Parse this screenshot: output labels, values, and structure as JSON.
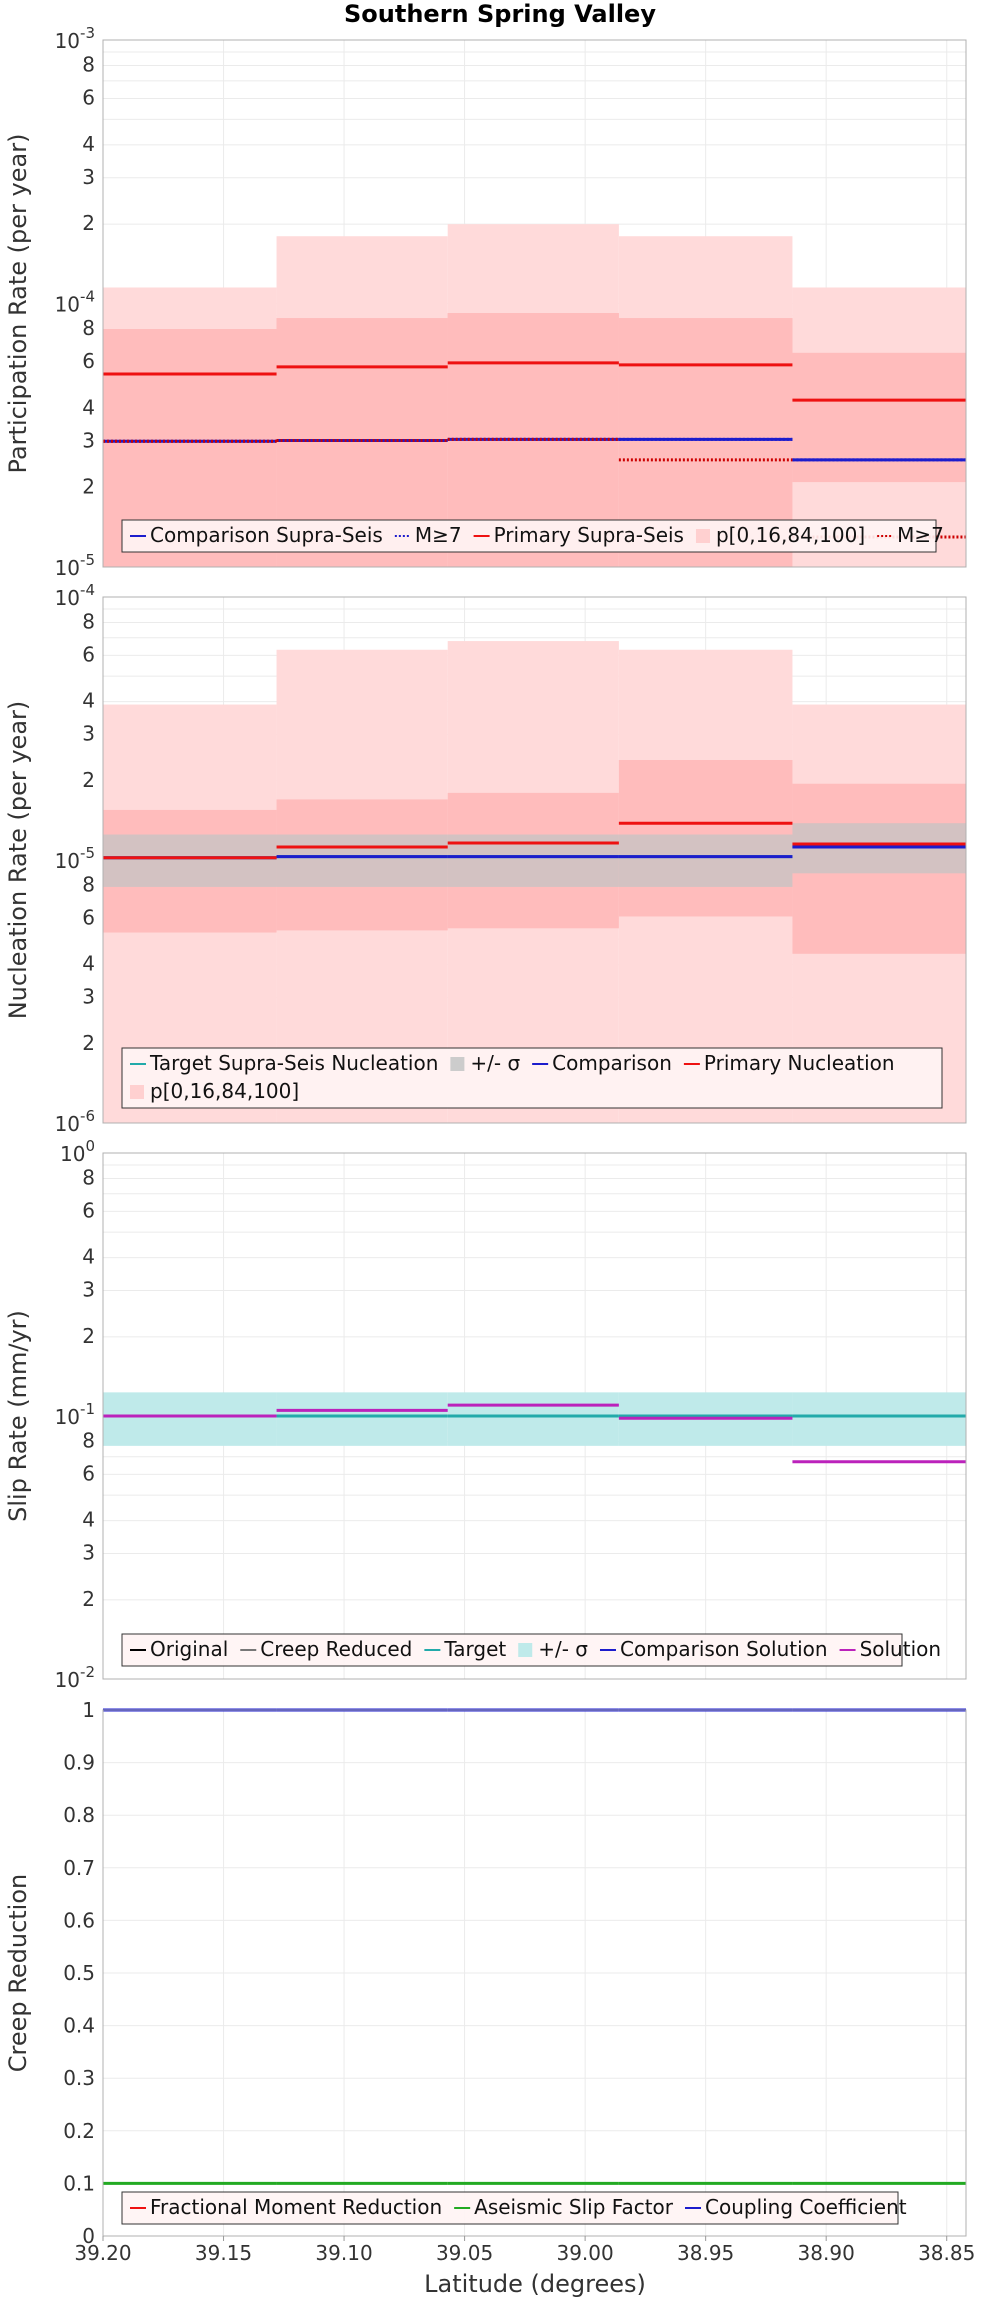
{
  "chart_data": {
    "type": "line",
    "title": "Southern Spring Valley",
    "xlabel": "Latitude (degrees)",
    "xlim": [
      39.2,
      38.842
    ],
    "x_ticks": [
      "39.20",
      "39.15",
      "39.10",
      "39.05",
      "39.00",
      "38.95",
      "38.90",
      "38.85"
    ],
    "grid": true,
    "segments": [
      39.2,
      39.128,
      39.057,
      38.986,
      38.914,
      38.842
    ],
    "panels": [
      {
        "ylabel": "Participation Rate (per year)",
        "yscale": "log",
        "ylim": [
          1e-05,
          0.001
        ],
        "decade_labels": [
          {
            "base": "10",
            "exp": "-5",
            "v": 1e-05
          },
          {
            "base": "10",
            "exp": "-4",
            "v": 0.0001
          },
          {
            "base": "10",
            "exp": "-3",
            "v": 0.001
          }
        ],
        "minor_labels": [
          {
            "t": "2",
            "v": 2e-05
          },
          {
            "t": "3",
            "v": 3e-05
          },
          {
            "t": "4",
            "v": 4e-05
          },
          {
            "t": "6",
            "v": 6e-05
          },
          {
            "t": "8",
            "v": 8e-05
          },
          {
            "t": "2",
            "v": 0.0002
          },
          {
            "t": "3",
            "v": 0.0003
          },
          {
            "t": "4",
            "v": 0.0004
          },
          {
            "t": "6",
            "v": 0.0006
          },
          {
            "t": "8",
            "v": 0.0008
          }
        ],
        "bands": [
          {
            "series": "p[0,16,84,100]",
            "color": "#ffdada",
            "lo": [
              1e-05,
              1e-05,
              1e-05,
              1e-05,
              1e-05
            ],
            "hi": [
              0.000115,
              0.00018,
              0.0002,
              0.00018,
              0.000115
            ]
          },
          {
            "series": "p[0,16,84,100]",
            "color": "#ffbcbc",
            "lo": [
              1e-05,
              1e-05,
              1e-05,
              1e-05,
              1e-05
            ],
            "hi": [
              8e-05,
              8.8e-05,
              9.2e-05,
              8.8e-05,
              1e-05
            ]
          },
          {
            "series": "p[0,16,84,100]",
            "color": "#ffbcbc",
            "lo": [
              3.3e-05,
              3.2e-05,
              3.2e-05,
              3.2e-05,
              2.1e-05
            ],
            "hi": [
              8e-05,
              8.8e-05,
              9.2e-05,
              8.8e-05,
              6.5e-05
            ]
          }
        ],
        "series": [
          {
            "name": "Comparison Supra-Seis",
            "color": "#1c1ccc",
            "style": "solid",
            "values": [
              3e-05,
              3.02e-05,
              3.05e-05,
              3.05e-05,
              2.55e-05
            ]
          },
          {
            "name": "M≥7",
            "color": "#1c1ccc",
            "style": "dotted",
            "values": [
              3e-05,
              3.02e-05,
              3.05e-05,
              3.05e-05,
              2.55e-05
            ]
          },
          {
            "name": "Primary Supra-Seis",
            "color": "#ee1111",
            "style": "solid",
            "values": [
              5.4e-05,
              5.75e-05,
              5.95e-05,
              5.85e-05,
              4.3e-05
            ]
          },
          {
            "name": "M≥7",
            "color": "#cc0000",
            "style": "dotted",
            "values": [
              3e-05,
              3.02e-05,
              3.05e-05,
              2.55e-05,
              1.3e-05
            ]
          }
        ],
        "legend": [
          {
            "label": "Comparison Supra-Seis",
            "color": "#1c1ccc",
            "style": "solid"
          },
          {
            "label": "M≥7",
            "color": "#1c1ccc",
            "style": "dotted"
          },
          {
            "label": "Primary Supra-Seis",
            "color": "#ee1111",
            "style": "solid"
          },
          {
            "label": "p[0,16,84,100]",
            "color": "#ffd0d0",
            "style": "box"
          },
          {
            "label": "M≥7",
            "color": "#cc0000",
            "style": "dotted"
          }
        ]
      },
      {
        "ylabel": "Nucleation Rate (per year)",
        "yscale": "log",
        "ylim": [
          1e-06,
          0.0001
        ],
        "decade_labels": [
          {
            "base": "10",
            "exp": "-6",
            "v": 1e-06
          },
          {
            "base": "10",
            "exp": "-5",
            "v": 1e-05
          },
          {
            "base": "10",
            "exp": "-4",
            "v": 0.0001
          }
        ],
        "minor_labels": [
          {
            "t": "2",
            "v": 2e-06
          },
          {
            "t": "3",
            "v": 3e-06
          },
          {
            "t": "4",
            "v": 4e-06
          },
          {
            "t": "6",
            "v": 6e-06
          },
          {
            "t": "8",
            "v": 8e-06
          },
          {
            "t": "2",
            "v": 2e-05
          },
          {
            "t": "3",
            "v": 3e-05
          },
          {
            "t": "4",
            "v": 4e-05
          },
          {
            "t": "6",
            "v": 6e-05
          },
          {
            "t": "8",
            "v": 8e-05
          }
        ],
        "bands": [
          {
            "series": "p[0,16,84,100]",
            "color": "#ffdada",
            "lo": [
              1e-06,
              1e-06,
              1e-06,
              1e-06,
              1e-06
            ],
            "hi": [
              3.9e-05,
              6.3e-05,
              6.8e-05,
              6.3e-05,
              3.9e-05
            ]
          },
          {
            "series": "p[0,16,84,100]",
            "color": "#ffbcbc",
            "lo": [
              5.3e-06,
              5.4e-06,
              5.5e-06,
              6.1e-06,
              4.4e-06
            ],
            "hi": [
              1.55e-05,
              1.7e-05,
              1.8e-05,
              2.4e-05,
              1.95e-05
            ]
          },
          {
            "series": "+/- σ",
            "color": "#c4c4c4",
            "opacity": 0.75,
            "lo": [
              7.9e-06,
              7.9e-06,
              7.9e-06,
              7.9e-06,
              8.9e-06
            ],
            "hi": [
              1.25e-05,
              1.25e-05,
              1.25e-05,
              1.25e-05,
              1.38e-05
            ]
          }
        ],
        "series": [
          {
            "name": "Target Supra-Seis Nucleation",
            "color": "#22aaaa",
            "style": "solid",
            "values": [
              1.02e-05,
              1.03e-05,
              1.03e-05,
              1.03e-05,
              1.12e-05
            ]
          },
          {
            "name": "Comparison",
            "color": "#1c1ccc",
            "style": "solid",
            "values": [
              1.02e-05,
              1.03e-05,
              1.03e-05,
              1.03e-05,
              1.12e-05
            ]
          },
          {
            "name": "Primary Nucleation",
            "color": "#ee1111",
            "style": "solid",
            "values": [
              1.02e-05,
              1.12e-05,
              1.16e-05,
              1.38e-05,
              1.15e-05
            ]
          }
        ],
        "legend": [
          {
            "label": "Target Supra-Seis Nucleation",
            "color": "#22aaaa",
            "style": "solid"
          },
          {
            "label": "+/- σ",
            "color": "#cccccc",
            "style": "box"
          },
          {
            "label": "Comparison",
            "color": "#1c1ccc",
            "style": "solid"
          },
          {
            "label": "Primary Nucleation",
            "color": "#ee1111",
            "style": "solid"
          },
          {
            "label": "p[0,16,84,100]",
            "color": "#ffd0d0",
            "style": "box"
          }
        ]
      },
      {
        "ylabel": "Slip Rate (mm/yr)",
        "yscale": "log",
        "ylim": [
          0.01,
          1
        ],
        "decade_labels": [
          {
            "base": "10",
            "exp": "-2",
            "v": 0.01
          },
          {
            "base": "10",
            "exp": "-1",
            "v": 0.1
          },
          {
            "base": "10",
            "exp": "0",
            "v": 1
          }
        ],
        "minor_labels": [
          {
            "t": "2",
            "v": 0.02
          },
          {
            "t": "3",
            "v": 0.03
          },
          {
            "t": "4",
            "v": 0.04
          },
          {
            "t": "6",
            "v": 0.06
          },
          {
            "t": "8",
            "v": 0.08
          },
          {
            "t": "2",
            "v": 0.2
          },
          {
            "t": "3",
            "v": 0.3
          },
          {
            "t": "4",
            "v": 0.4
          },
          {
            "t": "6",
            "v": 0.6
          },
          {
            "t": "8",
            "v": 0.8
          }
        ],
        "bands": [
          {
            "series": "+/- σ",
            "color": "#bfeaea",
            "lo": [
              0.077,
              0.077,
              0.077,
              0.077,
              0.077
            ],
            "hi": [
              0.123,
              0.123,
              0.123,
              0.123,
              0.123
            ]
          }
        ],
        "series": [
          {
            "name": "Target",
            "color": "#22aaaa",
            "style": "solid",
            "values": [
              0.1,
              0.1,
              0.1,
              0.1,
              0.1
            ]
          },
          {
            "name": "Solution",
            "color": "#bb22bb",
            "style": "solid",
            "values": [
              0.1,
              0.105,
              0.11,
              0.098,
              0.067
            ]
          }
        ],
        "legend": [
          {
            "label": "Original",
            "color": "#000000",
            "style": "solid"
          },
          {
            "label": "Creep Reduced",
            "color": "#777777",
            "style": "solid"
          },
          {
            "label": "Target",
            "color": "#22aaaa",
            "style": "solid"
          },
          {
            "label": "+/- σ",
            "color": "#bfeaea",
            "style": "box"
          },
          {
            "label": "Comparison Solution",
            "color": "#1c1ccc",
            "style": "solid"
          },
          {
            "label": "Solution",
            "color": "#bb22bb",
            "style": "solid"
          }
        ]
      },
      {
        "ylabel": "Creep Reduction",
        "yscale": "linear",
        "ylim": [
          0,
          1
        ],
        "y_ticks": [
          "0",
          "0.1",
          "0.2",
          "0.3",
          "0.4",
          "0.5",
          "0.6",
          "0.7",
          "0.8",
          "0.9",
          "1"
        ],
        "bands": [],
        "series": [
          {
            "name": "Coupling Coefficient",
            "color": "#1c1ccc",
            "style": "solid",
            "values": [
              1,
              1,
              1,
              1,
              1
            ]
          },
          {
            "name": "Aseismic Slip Factor",
            "color": "#22aa22",
            "style": "solid",
            "values": [
              0.1,
              0.1,
              0.1,
              0.1,
              0.1
            ]
          }
        ],
        "legend": [
          {
            "label": "Fractional Moment Reduction",
            "color": "#ee1111",
            "style": "solid"
          },
          {
            "label": "Aseismic Slip Factor",
            "color": "#22aa22",
            "style": "solid"
          },
          {
            "label": "Coupling Coefficient",
            "color": "#1c1ccc",
            "style": "solid"
          }
        ]
      }
    ]
  }
}
